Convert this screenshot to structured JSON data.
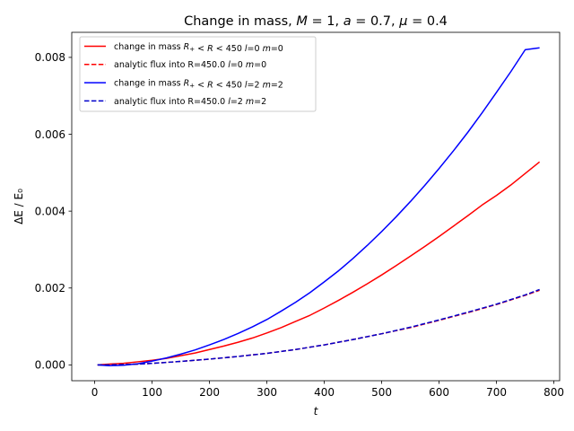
{
  "chart_data": {
    "type": "line",
    "title": {
      "prefix": "Change in mass, ",
      "parts": [
        {
          "text": "M",
          "italic": true
        },
        {
          "text": " = 1, ",
          "italic": false
        },
        {
          "text": "a",
          "italic": true
        },
        {
          "text": " = 0.7, ",
          "italic": false
        },
        {
          "text": "μ",
          "italic": true
        },
        {
          "text": " = 0.4",
          "italic": false
        }
      ]
    },
    "xlabel": "t",
    "ylabel": "ΔE / E₀",
    "xlim": [
      -40,
      810
    ],
    "ylim": [
      -0.000412,
      0.008652
    ],
    "xticks": [
      0,
      100,
      200,
      300,
      400,
      500,
      600,
      700,
      800
    ],
    "xtick_labels": [
      "0",
      "100",
      "200",
      "300",
      "400",
      "500",
      "600",
      "700",
      "800"
    ],
    "yticks": [
      0.0,
      0.002,
      0.004,
      0.006,
      0.008
    ],
    "ytick_labels": [
      "0.000",
      "0.002",
      "0.004",
      "0.006",
      "0.008"
    ],
    "grid": false,
    "legend_position": "top-left",
    "series": [
      {
        "name": "change in mass R₊ < R < 450 l=0 m=0",
        "color": "#ff0000",
        "dash": "solid",
        "x": [
          5,
          25,
          50,
          75,
          100,
          125,
          150,
          175,
          200,
          225,
          250,
          275,
          300,
          325,
          350,
          375,
          400,
          425,
          450,
          475,
          500,
          525,
          550,
          575,
          600,
          625,
          650,
          675,
          700,
          725,
          750,
          775
        ],
        "y": [
          0.0,
          2e-05,
          4e-05,
          8e-05,
          0.00012,
          0.00017,
          0.00024,
          0.00031,
          0.0004,
          0.00049,
          0.00059,
          0.0007,
          0.00083,
          0.00097,
          0.00113,
          0.00129,
          0.00148,
          0.00168,
          0.00189,
          0.00211,
          0.00234,
          0.00258,
          0.00283,
          0.00308,
          0.00334,
          0.00361,
          0.00388,
          0.00416,
          0.00441,
          0.00468,
          0.00498,
          0.00528
        ]
      },
      {
        "name": "analytic flux into R=450.0 l=0 m=0",
        "color": "#ff0000",
        "dash": "dashed",
        "x": [
          5,
          25,
          50,
          75,
          100,
          150,
          200,
          250,
          300,
          350,
          400,
          450,
          500,
          550,
          600,
          650,
          700,
          750,
          775
        ],
        "y": [
          0.0,
          0.0,
          1e-05,
          2e-05,
          4e-05,
          9e-05,
          0.00015,
          0.00022,
          0.0003,
          0.0004,
          0.00052,
          0.00066,
          0.00081,
          0.00097,
          0.00116,
          0.00136,
          0.00157,
          0.00181,
          0.00194
        ]
      },
      {
        "name": "change in mass R₊ < R < 450 l=2 m=2",
        "color": "#0000ff",
        "dash": "solid",
        "x": [
          5,
          25,
          50,
          75,
          100,
          125,
          150,
          175,
          200,
          225,
          250,
          275,
          300,
          325,
          350,
          375,
          400,
          425,
          450,
          475,
          500,
          525,
          550,
          575,
          600,
          625,
          650,
          675,
          700,
          725,
          750,
          775
        ],
        "y": [
          0.0,
          -2e-05,
          -1e-05,
          3e-05,
          0.0001,
          0.00018,
          0.00028,
          0.00039,
          0.00052,
          0.00066,
          0.00082,
          0.00099,
          0.00118,
          0.0014,
          0.00163,
          0.00188,
          0.00216,
          0.00245,
          0.00277,
          0.00311,
          0.00347,
          0.00385,
          0.00425,
          0.00467,
          0.00511,
          0.00557,
          0.00605,
          0.00656,
          0.00709,
          0.00763,
          0.0082,
          0.00825
        ]
      },
      {
        "name": "analytic flux into R=450.0 l=2 m=2",
        "color": "#0000cc",
        "dash": "dashed",
        "x": [
          5,
          25,
          50,
          75,
          100,
          150,
          200,
          250,
          300,
          350,
          400,
          450,
          500,
          550,
          600,
          650,
          700,
          750,
          775
        ],
        "y": [
          0.0,
          0.0,
          1e-05,
          2e-05,
          4e-05,
          9e-05,
          0.00015,
          0.00022,
          0.0003,
          0.0004,
          0.00052,
          0.00066,
          0.00081,
          0.00098,
          0.00117,
          0.00137,
          0.00158,
          0.00182,
          0.00196
        ]
      }
    ],
    "legend_entries": [
      {
        "prefix": "change in mass ",
        "math": [
          {
            "t": "R",
            "i": true
          },
          {
            "t": "+",
            "sub": true
          },
          {
            "t": " < ",
            "i": false
          },
          {
            "t": "R",
            "i": true
          },
          {
            "t": " < 450 ",
            "i": false
          },
          {
            "t": "l",
            "i": true
          },
          {
            "t": "=0 ",
            "i": false
          },
          {
            "t": "m",
            "i": true
          },
          {
            "t": "=0",
            "i": false
          }
        ]
      },
      {
        "prefix": "analytic flux into R=450.0 ",
        "math": [
          {
            "t": "l",
            "i": true
          },
          {
            "t": "=0 ",
            "i": false
          },
          {
            "t": "m",
            "i": true
          },
          {
            "t": "=0",
            "i": false
          }
        ]
      },
      {
        "prefix": "change in mass ",
        "math": [
          {
            "t": "R",
            "i": true
          },
          {
            "t": "+",
            "sub": true
          },
          {
            "t": " < ",
            "i": false
          },
          {
            "t": "R",
            "i": true
          },
          {
            "t": " < 450 ",
            "i": false
          },
          {
            "t": "l",
            "i": true
          },
          {
            "t": "=2 ",
            "i": false
          },
          {
            "t": "m",
            "i": true
          },
          {
            "t": "=2",
            "i": false
          }
        ]
      },
      {
        "prefix": "analytic flux into R=450.0 ",
        "math": [
          {
            "t": "l",
            "i": true
          },
          {
            "t": "=2 ",
            "i": false
          },
          {
            "t": "m",
            "i": true
          },
          {
            "t": "=2",
            "i": false
          }
        ]
      }
    ]
  }
}
